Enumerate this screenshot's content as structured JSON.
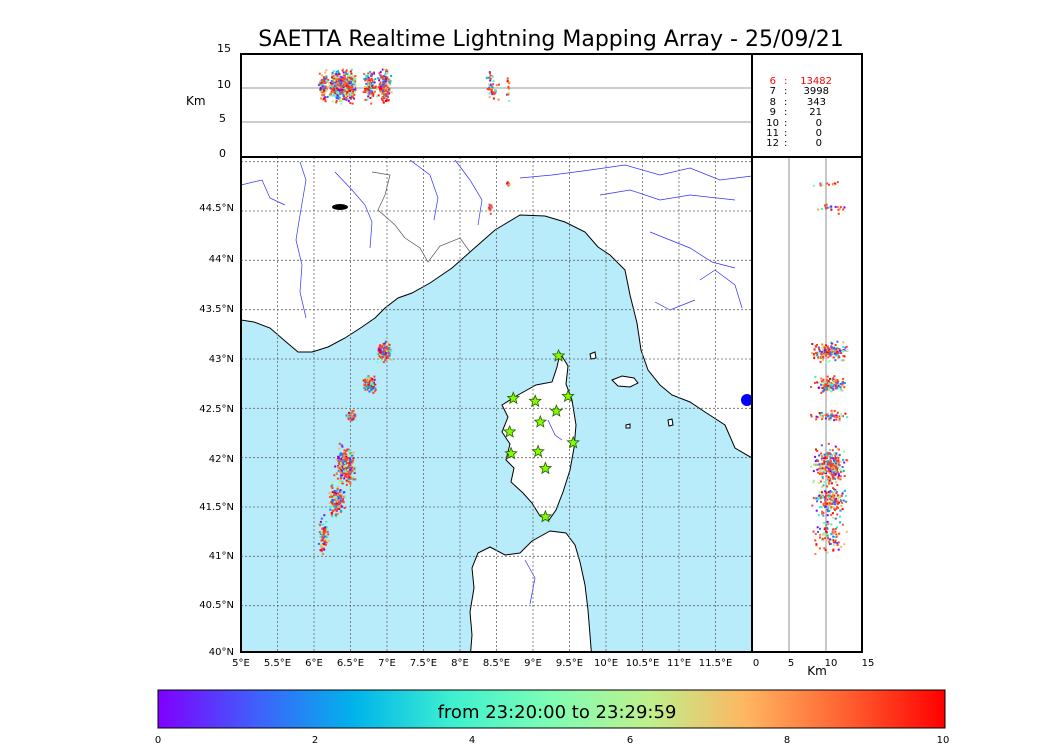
{
  "title": "SAETTA Realtime Lightning Mapping Array - 25/09/21",
  "top_panel": {
    "ylabel": "Km",
    "yticks": [
      "15",
      "10",
      "5",
      "0"
    ]
  },
  "side_panel": {
    "xlabel": "Km",
    "xticks": [
      "0",
      "5",
      "10",
      "15"
    ]
  },
  "map": {
    "lon_ticks": [
      "5°E",
      "5.5°E",
      "6°E",
      "6.5°E",
      "7°E",
      "7.5°E",
      "8°E",
      "8.5°E",
      "9°E",
      "9.5°E",
      "10°E",
      "10.5°E",
      "11°E",
      "11.5°E"
    ],
    "lat_ticks": [
      "44.5°N",
      "44°N",
      "43.5°N",
      "43°N",
      "42.5°N",
      "42°N",
      "41.5°N",
      "41°N",
      "40.5°N",
      "40°N"
    ],
    "sea_color": "#b8ecfa",
    "land_color": "#ffffff",
    "station_color": "#7fff00",
    "stations": [
      {
        "lon": 9.35,
        "lat": 43.0
      },
      {
        "lon": 8.73,
        "lat": 42.57
      },
      {
        "lon": 9.03,
        "lat": 42.54
      },
      {
        "lon": 9.48,
        "lat": 42.59
      },
      {
        "lon": 9.32,
        "lat": 42.44
      },
      {
        "lon": 9.1,
        "lat": 42.33
      },
      {
        "lon": 8.68,
        "lat": 42.23
      },
      {
        "lon": 9.55,
        "lat": 42.12
      },
      {
        "lon": 8.7,
        "lat": 42.01
      },
      {
        "lon": 9.07,
        "lat": 42.03
      },
      {
        "lon": 9.17,
        "lat": 41.86
      },
      {
        "lon": 9.17,
        "lat": 41.37
      }
    ]
  },
  "counts": [
    {
      "label": "6",
      "value": "13482",
      "color": "#ff0000"
    },
    {
      "label": "7",
      "value": "3998",
      "color": "#000000"
    },
    {
      "label": "8",
      "value": "343",
      "color": "#000000"
    },
    {
      "label": "9",
      "value": "21",
      "color": "#000000"
    },
    {
      "label": "10",
      "value": "0",
      "color": "#000000"
    },
    {
      "label": "11",
      "value": "0",
      "color": "#000000"
    },
    {
      "label": "12",
      "value": "0",
      "color": "#000000"
    }
  ],
  "colorbar": {
    "label": "from 23:20:00 to 23:29:59",
    "ticks": [
      "0",
      "2",
      "4",
      "6",
      "8",
      "10"
    ],
    "colors": [
      "#7f00ff",
      "#3f60fb",
      "#00b4eb",
      "#3ff0cf",
      "#7ffdb4",
      "#bff08c",
      "#ffb460",
      "#ff6030",
      "#ff0000"
    ]
  }
}
